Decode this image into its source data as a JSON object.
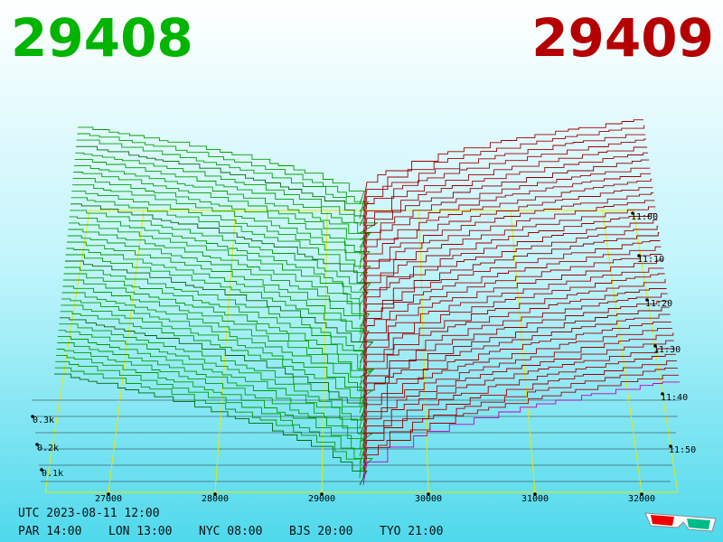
{
  "header": {
    "bid": "29408",
    "ask": "29409"
  },
  "axes": {
    "price_ticks": [
      "27000",
      "28000",
      "29000",
      "30000",
      "31000",
      "32000"
    ],
    "time_ticks": [
      "11:00",
      "11:10",
      "11:20",
      "11:30",
      "11:40",
      "11:50"
    ],
    "depth_ticks": [
      "0.3k",
      "0.2k",
      "0.1k"
    ]
  },
  "footer": {
    "utc": "UTC 2023-08-11 12:00",
    "clocks": [
      "PAR 14:00",
      "LON 13:00",
      "NYC 08:00",
      "BJS 20:00",
      "TYO 21:00"
    ]
  }
}
